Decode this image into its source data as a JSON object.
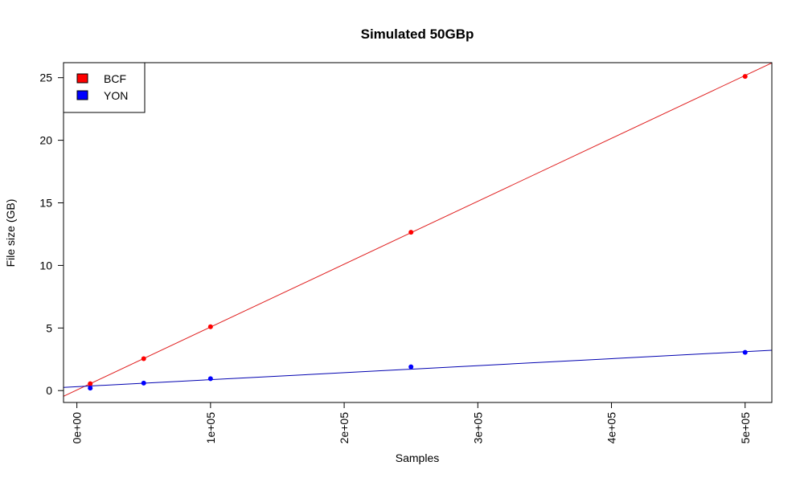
{
  "chart_data": {
    "type": "scatter",
    "title": "Simulated 50GBp",
    "xlabel": "Samples",
    "ylabel": "File size (GB)",
    "xlim": [
      -10000,
      520000
    ],
    "ylim": [
      -0.95,
      26.2
    ],
    "x_ticks": [
      0,
      100000,
      200000,
      300000,
      400000,
      500000
    ],
    "x_tick_labels": [
      "0e+00",
      "1e+05",
      "2e+05",
      "3e+05",
      "4e+05",
      "5e+05"
    ],
    "y_ticks": [
      0,
      5,
      10,
      15,
      20,
      25
    ],
    "y_tick_labels": [
      "0",
      "5",
      "10",
      "15",
      "20",
      "25"
    ],
    "legend_position": "top-left",
    "grid": false,
    "series": [
      {
        "name": "BCF",
        "color": "#ff0000",
        "line_color": "#e02020",
        "x": [
          10000,
          50000,
          100000,
          250000,
          500000
        ],
        "y": [
          0.55,
          2.55,
          5.1,
          12.65,
          25.1
        ],
        "fit": {
          "intercept": 0.05,
          "slope": 5.025e-05
        }
      },
      {
        "name": "YON",
        "color": "#0000ff",
        "line_color": "#0000b0",
        "x": [
          10000,
          50000,
          100000,
          250000,
          500000
        ],
        "y": [
          0.2,
          0.6,
          0.95,
          1.9,
          3.05
        ],
        "fit": {
          "intercept": 0.31,
          "slope": 5.6e-06
        }
      }
    ]
  }
}
